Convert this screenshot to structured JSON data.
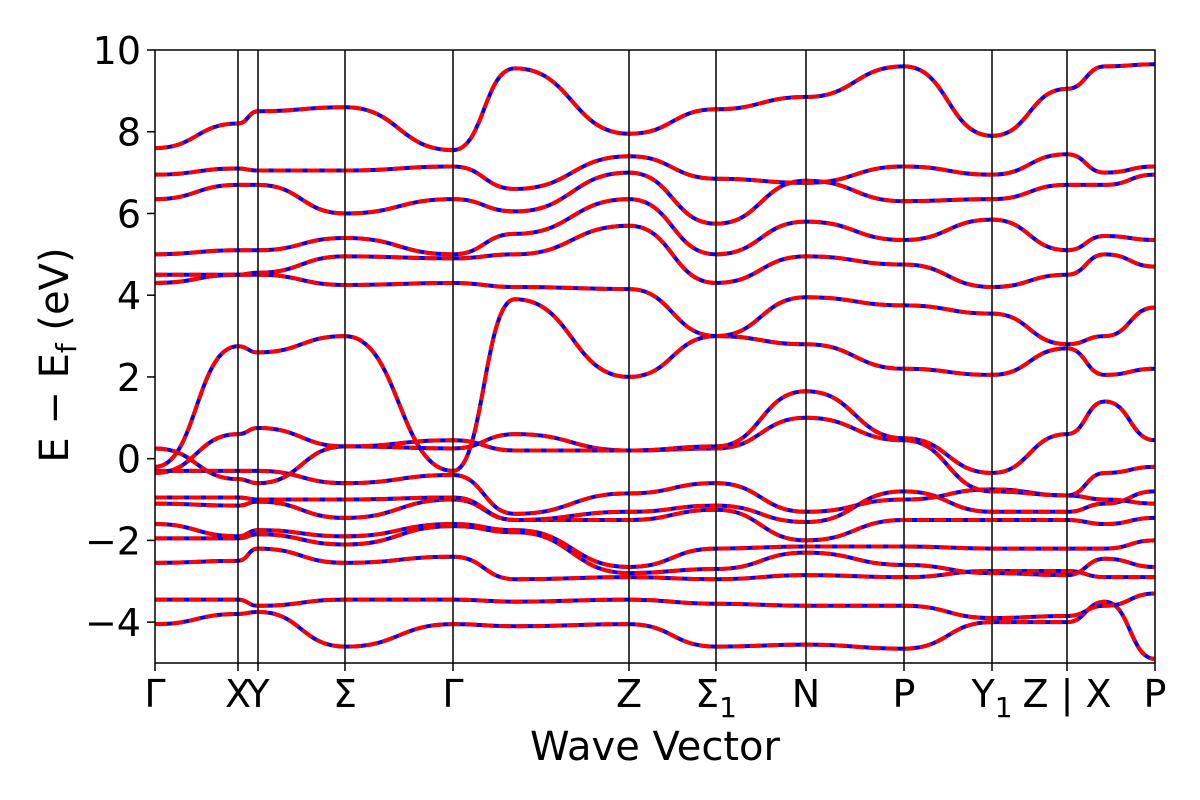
{
  "chart_data": {
    "type": "line",
    "title": "",
    "xlabel": "Wave Vector",
    "ylabel_main": "E − E",
    "ylabel_sub": "f",
    "ylabel_unit": " (eV)",
    "ylim": [
      -5,
      10
    ],
    "yticks": [
      -4,
      -2,
      0,
      2,
      4,
      6,
      8,
      10
    ],
    "ytick_labels": [
      "−4",
      "−2",
      "0",
      "2",
      "4",
      "6",
      "8",
      "10"
    ],
    "xlim": [
      0,
      1.0
    ],
    "kpoints": [
      {
        "x": 0.0,
        "label": "Γ",
        "sub": ""
      },
      {
        "x": 0.083,
        "label": "X",
        "sub": ""
      },
      {
        "x": 0.103,
        "label": "Y",
        "sub": ""
      },
      {
        "x": 0.19,
        "label": "Σ",
        "sub": ""
      },
      {
        "x": 0.298,
        "label": "Γ",
        "sub": ""
      },
      {
        "x": 0.474,
        "label": "Z",
        "sub": ""
      },
      {
        "x": 0.561,
        "label": "Σ",
        "sub": "1"
      },
      {
        "x": 0.651,
        "label": "N",
        "sub": ""
      },
      {
        "x": 0.749,
        "label": "P",
        "sub": ""
      },
      {
        "x": 0.837,
        "label": "Y",
        "sub": "1"
      },
      {
        "x": 0.912,
        "label": "Z | X",
        "sub": ""
      },
      {
        "x": 1.0,
        "label": "P",
        "sub": ""
      }
    ],
    "grid": false,
    "series_colors": {
      "primary": "#0000ff",
      "overlay": "#ff0000"
    },
    "series": [
      {
        "x": [
          0,
          0.083,
          0.103,
          0.19,
          0.298,
          0.36,
          0.474,
          0.561,
          0.651,
          0.749,
          0.837,
          0.912,
          0.95,
          1.0
        ],
        "y": [
          -4.05,
          -3.8,
          -3.75,
          -4.6,
          -4.05,
          -4.1,
          -4.05,
          -4.6,
          -4.55,
          -4.65,
          -4.0,
          -4.0,
          -3.5,
          -4.9
        ]
      },
      {
        "x": [
          0,
          0.083,
          0.103,
          0.19,
          0.298,
          0.36,
          0.474,
          0.561,
          0.651,
          0.749,
          0.837,
          0.912,
          0.95,
          1.0
        ],
        "y": [
          -3.45,
          -3.45,
          -3.6,
          -3.45,
          -3.45,
          -3.5,
          -3.45,
          -3.55,
          -3.6,
          -3.6,
          -3.9,
          -3.85,
          -3.6,
          -3.3
        ]
      },
      {
        "x": [
          0,
          0.083,
          0.103,
          0.19,
          0.298,
          0.36,
          0.474,
          0.561,
          0.651,
          0.749,
          0.837,
          0.912,
          0.95,
          1.0
        ],
        "y": [
          -2.55,
          -2.5,
          -2.2,
          -2.55,
          -2.4,
          -2.95,
          -2.9,
          -2.95,
          -2.85,
          -2.9,
          -2.75,
          -2.75,
          -2.9,
          -2.9
        ]
      },
      {
        "x": [
          0,
          0.083,
          0.103,
          0.19,
          0.298,
          0.36,
          0.474,
          0.561,
          0.651,
          0.749,
          0.837,
          0.912,
          0.95,
          1.0
        ],
        "y": [
          -1.95,
          -1.95,
          -1.85,
          -2.1,
          -1.65,
          -1.8,
          -2.8,
          -2.7,
          -2.3,
          -2.6,
          -2.8,
          -2.85,
          -2.45,
          -2.65
        ]
      },
      {
        "x": [
          0,
          0.083,
          0.103,
          0.19,
          0.298,
          0.36,
          0.474,
          0.561,
          0.651,
          0.749,
          0.837,
          0.912,
          0.95,
          1.0
        ],
        "y": [
          -1.6,
          -1.9,
          -1.75,
          -1.9,
          -1.6,
          -1.75,
          -2.65,
          -2.2,
          -2.15,
          -2.15,
          -2.2,
          -2.2,
          -2.2,
          -2.0
        ]
      },
      {
        "x": [
          0,
          0.083,
          0.103,
          0.19,
          0.298,
          0.36,
          0.474,
          0.561,
          0.651,
          0.749,
          0.837,
          0.912,
          0.95,
          1.0
        ],
        "y": [
          -1.1,
          -1.15,
          -1.05,
          -1.45,
          -1.0,
          -1.5,
          -1.5,
          -1.25,
          -2.0,
          -1.5,
          -1.5,
          -1.5,
          -1.6,
          -1.45
        ]
      },
      {
        "x": [
          0,
          0.083,
          0.103,
          0.19,
          0.298,
          0.36,
          0.474,
          0.561,
          0.651,
          0.749,
          0.837,
          0.912,
          0.95,
          1.0
        ],
        "y": [
          -0.95,
          -0.95,
          -1.0,
          -1.0,
          -0.95,
          -1.5,
          -1.3,
          -1.15,
          -1.55,
          -0.8,
          -1.3,
          -1.3,
          -1.1,
          -0.8
        ]
      },
      {
        "x": [
          0,
          0.083,
          0.103,
          0.19,
          0.298,
          0.36,
          0.474,
          0.561,
          0.651,
          0.749,
          0.837,
          0.912,
          0.95,
          1.0
        ],
        "y": [
          -0.3,
          -0.3,
          -0.3,
          -0.6,
          -0.4,
          -1.35,
          -0.85,
          -0.6,
          -1.3,
          -1.0,
          -0.75,
          -0.9,
          -1.0,
          -1.1
        ]
      },
      {
        "x": [
          0,
          0.083,
          0.103,
          0.19,
          0.298,
          0.36,
          0.474,
          0.561,
          0.651,
          0.749,
          0.837,
          0.912,
          0.95,
          1.0
        ],
        "y": [
          0.25,
          -0.5,
          -0.6,
          0.3,
          0.25,
          0.6,
          0.2,
          0.25,
          1.0,
          0.45,
          -0.8,
          -0.9,
          -0.35,
          -0.2
        ]
      },
      {
        "x": [
          0,
          0.083,
          0.103,
          0.19,
          0.298,
          0.36,
          0.474,
          0.561,
          0.651,
          0.749,
          0.837,
          0.912,
          0.95,
          1.0
        ],
        "y": [
          -0.35,
          0.6,
          0.75,
          0.3,
          0.45,
          0.2,
          0.2,
          0.3,
          1.65,
          0.5,
          -0.35,
          0.6,
          1.4,
          0.45
        ]
      },
      {
        "x": [
          0,
          0.083,
          0.103,
          0.19,
          0.298,
          0.36,
          0.474,
          0.561,
          0.651,
          0.749,
          0.837,
          0.912,
          0.95,
          1.0
        ],
        "y": [
          -0.2,
          2.75,
          2.6,
          3.0,
          -0.3,
          3.9,
          2.0,
          3.0,
          2.8,
          2.2,
          2.05,
          2.7,
          2.05,
          2.2
        ]
      },
      {
        "x": [
          0,
          0.083,
          0.103,
          0.19,
          0.298,
          0.36,
          0.474,
          0.561,
          0.651,
          0.749,
          0.837,
          0.912,
          0.95,
          1.0
        ],
        "y": [
          4.3,
          4.5,
          4.5,
          4.25,
          4.3,
          4.2,
          4.15,
          3.0,
          3.95,
          3.75,
          3.55,
          2.8,
          3.0,
          3.7
        ]
      },
      {
        "x": [
          0,
          0.083,
          0.103,
          0.19,
          0.298,
          0.36,
          0.474,
          0.561,
          0.651,
          0.749,
          0.837,
          0.912,
          0.95,
          1.0
        ],
        "y": [
          4.5,
          4.5,
          4.55,
          4.95,
          4.9,
          5.0,
          5.7,
          4.3,
          4.95,
          4.75,
          4.2,
          4.5,
          5.0,
          4.7
        ]
      },
      {
        "x": [
          0,
          0.083,
          0.103,
          0.19,
          0.298,
          0.36,
          0.474,
          0.561,
          0.651,
          0.749,
          0.837,
          0.912,
          0.95,
          1.0
        ],
        "y": [
          5.0,
          5.1,
          5.1,
          5.4,
          5.0,
          5.5,
          6.35,
          5.0,
          5.8,
          5.35,
          5.85,
          5.1,
          5.45,
          5.35
        ]
      },
      {
        "x": [
          0,
          0.083,
          0.103,
          0.19,
          0.298,
          0.36,
          0.474,
          0.561,
          0.651,
          0.749,
          0.837,
          0.912,
          0.95,
          1.0
        ],
        "y": [
          6.35,
          6.7,
          6.7,
          6.0,
          6.35,
          6.05,
          7.0,
          5.75,
          6.8,
          6.3,
          6.35,
          6.7,
          6.7,
          6.95
        ]
      },
      {
        "x": [
          0,
          0.083,
          0.103,
          0.19,
          0.298,
          0.36,
          0.474,
          0.561,
          0.651,
          0.749,
          0.837,
          0.912,
          0.95,
          1.0
        ],
        "y": [
          6.95,
          7.1,
          7.05,
          7.05,
          7.15,
          6.6,
          7.4,
          6.85,
          6.75,
          7.15,
          6.95,
          7.45,
          7.0,
          7.15
        ]
      },
      {
        "x": [
          0,
          0.083,
          0.103,
          0.19,
          0.298,
          0.36,
          0.474,
          0.561,
          0.651,
          0.749,
          0.837,
          0.912,
          0.95,
          1.0
        ],
        "y": [
          7.6,
          8.2,
          8.5,
          8.6,
          7.55,
          9.55,
          7.95,
          8.55,
          8.85,
          9.6,
          7.9,
          9.05,
          9.6,
          9.65
        ]
      }
    ]
  }
}
